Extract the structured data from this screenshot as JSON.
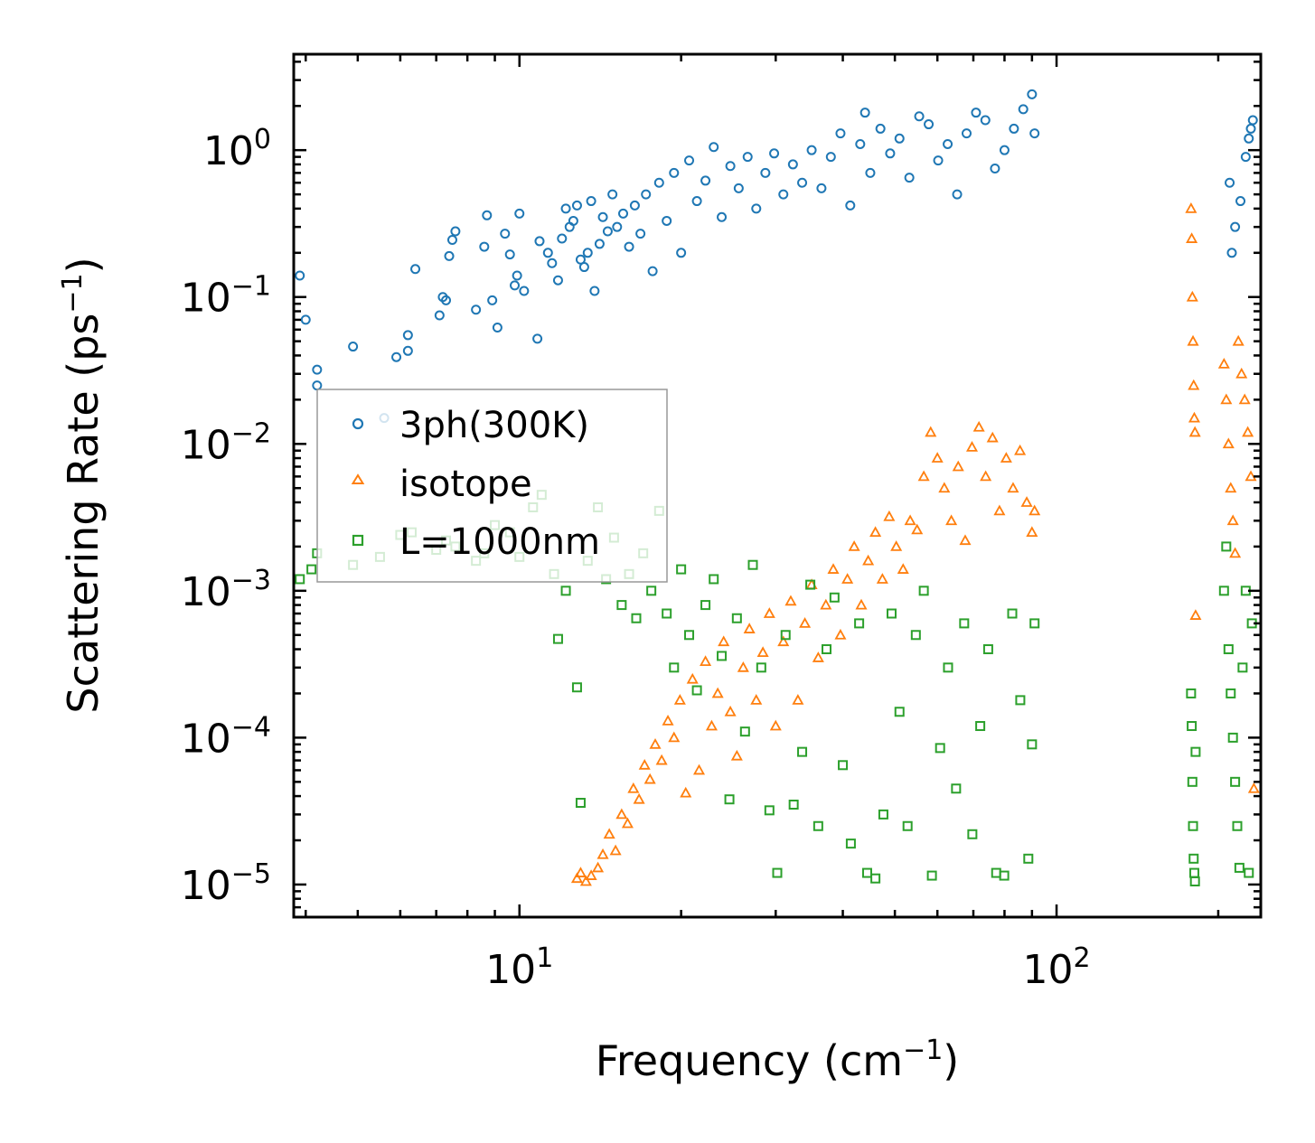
{
  "chart_data": {
    "type": "scatter",
    "title": "",
    "xscale": "log",
    "yscale": "log",
    "xlim": [
      3.8,
      240
    ],
    "ylim": [
      6e-06,
      4.5
    ],
    "xlabel": {
      "main": "Frequency (cm",
      "sup": "−1",
      "end": ")"
    },
    "ylabel": {
      "main": "Scattering Rate (ps",
      "sup": "−1",
      "end": ")"
    },
    "xticks": [
      {
        "value": 10,
        "base": "10",
        "exp": "1"
      },
      {
        "value": 100,
        "base": "10",
        "exp": "2"
      }
    ],
    "yticks": [
      {
        "value": 1,
        "base": "10",
        "exp": "0"
      },
      {
        "value": 0.1,
        "base": "10",
        "exp": "−1"
      },
      {
        "value": 0.01,
        "base": "10",
        "exp": "−2"
      },
      {
        "value": 0.001,
        "base": "10",
        "exp": "−3"
      },
      {
        "value": 0.0001,
        "base": "10",
        "exp": "−4"
      },
      {
        "value": 1e-05,
        "base": "10",
        "exp": "−5"
      }
    ],
    "legend_position": "center-left",
    "series": [
      {
        "name": "3ph(300K)",
        "marker": "circle",
        "color": "#1f77b4",
        "points": [
          [
            3.9,
            0.14
          ],
          [
            4.0,
            0.07
          ],
          [
            4.2,
            0.032
          ],
          [
            4.2,
            0.025
          ],
          [
            4.9,
            0.046
          ],
          [
            5.6,
            0.015
          ],
          [
            5.9,
            0.039
          ],
          [
            6.2,
            0.043
          ],
          [
            6.2,
            0.055
          ],
          [
            6.4,
            0.155
          ],
          [
            7.1,
            0.075
          ],
          [
            7.2,
            0.1
          ],
          [
            7.3,
            0.095
          ],
          [
            7.4,
            0.19
          ],
          [
            7.5,
            0.245
          ],
          [
            7.6,
            0.28
          ],
          [
            8.3,
            0.082
          ],
          [
            8.6,
            0.22
          ],
          [
            8.7,
            0.36
          ],
          [
            8.9,
            0.095
          ],
          [
            9.1,
            0.062
          ],
          [
            9.4,
            0.27
          ],
          [
            9.6,
            0.195
          ],
          [
            9.8,
            0.12
          ],
          [
            9.9,
            0.14
          ],
          [
            10.0,
            0.37
          ],
          [
            10.2,
            0.11
          ],
          [
            10.8,
            0.052
          ],
          [
            10.9,
            0.24
          ],
          [
            11.3,
            0.2
          ],
          [
            11.5,
            0.17
          ],
          [
            11.8,
            0.13
          ],
          [
            12.0,
            0.25
          ],
          [
            12.2,
            0.4
          ],
          [
            12.4,
            0.3
          ],
          [
            12.6,
            0.33
          ],
          [
            12.8,
            0.42
          ],
          [
            13.0,
            0.18
          ],
          [
            13.2,
            0.16
          ],
          [
            13.4,
            0.2
          ],
          [
            13.6,
            0.45
          ],
          [
            13.8,
            0.11
          ],
          [
            14.1,
            0.23
          ],
          [
            14.3,
            0.35
          ],
          [
            14.6,
            0.28
          ],
          [
            14.9,
            0.5
          ],
          [
            15.2,
            0.3
          ],
          [
            15.6,
            0.37
          ],
          [
            16.0,
            0.22
          ],
          [
            16.4,
            0.42
          ],
          [
            16.8,
            0.27
          ],
          [
            17.2,
            0.5
          ],
          [
            17.7,
            0.15
          ],
          [
            18.2,
            0.6
          ],
          [
            18.8,
            0.33
          ],
          [
            19.4,
            0.7
          ],
          [
            20.0,
            0.2
          ],
          [
            20.7,
            0.85
          ],
          [
            21.4,
            0.45
          ],
          [
            22.2,
            0.62
          ],
          [
            23.0,
            1.05
          ],
          [
            23.8,
            0.35
          ],
          [
            24.7,
            0.78
          ],
          [
            25.6,
            0.55
          ],
          [
            26.6,
            0.9
          ],
          [
            27.6,
            0.4
          ],
          [
            28.7,
            0.7
          ],
          [
            29.8,
            0.95
          ],
          [
            31.0,
            0.5
          ],
          [
            32.3,
            0.8
          ],
          [
            33.6,
            0.6
          ],
          [
            35.0,
            1.0
          ],
          [
            36.5,
            0.55
          ],
          [
            38.0,
            0.9
          ],
          [
            39.6,
            1.3
          ],
          [
            41.3,
            0.42
          ],
          [
            43.1,
            1.1
          ],
          [
            44.0,
            1.8
          ],
          [
            45.0,
            0.7
          ],
          [
            47.0,
            1.4
          ],
          [
            49.0,
            0.95
          ],
          [
            51.0,
            1.2
          ],
          [
            53.2,
            0.65
          ],
          [
            55.5,
            1.7
          ],
          [
            57.8,
            1.5
          ],
          [
            60.2,
            0.85
          ],
          [
            62.7,
            1.1
          ],
          [
            65.3,
            0.5
          ],
          [
            68.0,
            1.3
          ],
          [
            70.8,
            1.8
          ],
          [
            73.7,
            1.6
          ],
          [
            76.8,
            0.75
          ],
          [
            80.0,
            1.0
          ],
          [
            83.3,
            1.4
          ],
          [
            86.7,
            1.9
          ],
          [
            90.0,
            2.4
          ],
          [
            91.0,
            1.3
          ],
          [
            210.0,
            0.6
          ],
          [
            212.0,
            0.2
          ],
          [
            215.0,
            0.3
          ],
          [
            220.0,
            0.45
          ],
          [
            225.0,
            0.9
          ],
          [
            228.0,
            1.2
          ],
          [
            230.0,
            1.4
          ],
          [
            232.0,
            1.6
          ]
        ]
      },
      {
        "name": "isotope",
        "marker": "triangle",
        "color": "#ff7f0e",
        "points": [
          [
            12.8,
            1.1e-05
          ],
          [
            13.0,
            1.2e-05
          ],
          [
            13.3,
            1.05e-05
          ],
          [
            13.6,
            1.15e-05
          ],
          [
            14.0,
            1.3e-05
          ],
          [
            14.3,
            1.6e-05
          ],
          [
            14.7,
            2.2e-05
          ],
          [
            15.1,
            1.7e-05
          ],
          [
            15.5,
            3e-05
          ],
          [
            15.9,
            2.6e-05
          ],
          [
            16.3,
            4.5e-05
          ],
          [
            16.7,
            3.8e-05
          ],
          [
            17.1,
            6.5e-05
          ],
          [
            17.5,
            5.2e-05
          ],
          [
            17.9,
            9e-05
          ],
          [
            18.4,
            7e-05
          ],
          [
            18.9,
            0.00013
          ],
          [
            19.4,
            0.0001
          ],
          [
            19.9,
            0.00018
          ],
          [
            20.4,
            4.2e-05
          ],
          [
            21.0,
            0.00025
          ],
          [
            21.6,
            6e-05
          ],
          [
            22.2,
            0.00033
          ],
          [
            22.8,
            0.00012
          ],
          [
            23.4,
            0.0002
          ],
          [
            24.0,
            0.00045
          ],
          [
            24.7,
            0.00015
          ],
          [
            25.4,
            7.5e-05
          ],
          [
            26.1,
            0.0003
          ],
          [
            26.8,
            0.00055
          ],
          [
            27.6,
            0.00018
          ],
          [
            28.4,
            0.00038
          ],
          [
            29.2,
            0.0007
          ],
          [
            30.0,
            0.00012
          ],
          [
            31.0,
            0.00045
          ],
          [
            32.0,
            0.00085
          ],
          [
            33.0,
            0.00018
          ],
          [
            34.0,
            0.0006
          ],
          [
            35.0,
            0.0011
          ],
          [
            36.0,
            0.00035
          ],
          [
            37.2,
            0.0008
          ],
          [
            38.4,
            0.0014
          ],
          [
            39.6,
            0.0005
          ],
          [
            40.8,
            0.0012
          ],
          [
            42.0,
            0.002
          ],
          [
            43.3,
            0.0008
          ],
          [
            44.6,
            0.0016
          ],
          [
            46.0,
            0.0025
          ],
          [
            47.4,
            0.0012
          ],
          [
            48.8,
            0.0032
          ],
          [
            50.3,
            0.002
          ],
          [
            51.8,
            0.0014
          ],
          [
            53.4,
            0.003
          ],
          [
            55.0,
            0.0026
          ],
          [
            56.6,
            0.006
          ],
          [
            58.3,
            0.012
          ],
          [
            60.0,
            0.008
          ],
          [
            61.8,
            0.005
          ],
          [
            63.7,
            0.003
          ],
          [
            65.6,
            0.007
          ],
          [
            67.6,
            0.0022
          ],
          [
            69.6,
            0.0095
          ],
          [
            71.7,
            0.013
          ],
          [
            73.8,
            0.006
          ],
          [
            76.0,
            0.011
          ],
          [
            78.3,
            0.0035
          ],
          [
            80.6,
            0.008
          ],
          [
            83.0,
            0.005
          ],
          [
            85.5,
            0.009
          ],
          [
            88.0,
            0.004
          ],
          [
            90.0,
            0.0025
          ],
          [
            91.0,
            0.0035
          ],
          [
            178.0,
            0.4
          ],
          [
            178.5,
            0.25
          ],
          [
            179.0,
            0.1
          ],
          [
            179.5,
            0.05
          ],
          [
            180.0,
            0.025
          ],
          [
            180.5,
            0.015
          ],
          [
            181.0,
            0.012
          ],
          [
            181.5,
            0.00068
          ],
          [
            205.0,
            0.035
          ],
          [
            207.0,
            0.02
          ],
          [
            209.0,
            0.01
          ],
          [
            211.0,
            0.005
          ],
          [
            213.0,
            0.003
          ],
          [
            215.0,
            0.0018
          ],
          [
            218.0,
            0.05
          ],
          [
            221.0,
            0.03
          ],
          [
            224.0,
            0.02
          ],
          [
            227.0,
            0.012
          ],
          [
            230.0,
            0.006
          ],
          [
            233.0,
            4.5e-05
          ]
        ]
      },
      {
        "name": "L=1000nm",
        "marker": "square",
        "color": "#2ca02c",
        "points": [
          [
            3.9,
            0.0012
          ],
          [
            4.1,
            0.0014
          ],
          [
            4.2,
            0.0018
          ],
          [
            4.9,
            0.0015
          ],
          [
            5.5,
            0.0017
          ],
          [
            6.0,
            0.0024
          ],
          [
            6.3,
            0.0025
          ],
          [
            7.0,
            0.0019
          ],
          [
            7.3,
            0.0022
          ],
          [
            7.6,
            0.002
          ],
          [
            8.3,
            0.0016
          ],
          [
            8.6,
            0.0018
          ],
          [
            9.0,
            0.0028
          ],
          [
            9.6,
            0.0025
          ],
          [
            10.0,
            0.0017
          ],
          [
            10.6,
            0.0037
          ],
          [
            11.0,
            0.0045
          ],
          [
            11.6,
            0.0013
          ],
          [
            11.8,
            0.00047
          ],
          [
            12.2,
            0.001
          ],
          [
            12.8,
            0.00022
          ],
          [
            13.0,
            3.6e-05
          ],
          [
            13.4,
            0.0016
          ],
          [
            14.0,
            0.0037
          ],
          [
            14.5,
            0.0012
          ],
          [
            15.0,
            0.0023
          ],
          [
            15.5,
            0.0008
          ],
          [
            16.0,
            0.0013
          ],
          [
            16.5,
            0.00065
          ],
          [
            17.0,
            0.0018
          ],
          [
            17.6,
            0.001
          ],
          [
            18.2,
            0.0035
          ],
          [
            18.8,
            0.0007
          ],
          [
            19.4,
            0.0003
          ],
          [
            20.0,
            0.0014
          ],
          [
            20.7,
            0.0005
          ],
          [
            21.4,
            0.00021
          ],
          [
            22.2,
            0.0008
          ],
          [
            23.0,
            0.0012
          ],
          [
            23.8,
            0.00036
          ],
          [
            24.6,
            3.8e-05
          ],
          [
            25.4,
            0.00065
          ],
          [
            26.3,
            0.00011
          ],
          [
            27.2,
            0.0015
          ],
          [
            28.2,
            0.0003
          ],
          [
            29.2,
            3.2e-05
          ],
          [
            30.2,
            1.2e-05
          ],
          [
            31.3,
            0.0005
          ],
          [
            32.4,
            3.5e-05
          ],
          [
            33.6,
            8e-05
          ],
          [
            34.8,
            0.0011
          ],
          [
            36.0,
            2.5e-05
          ],
          [
            37.3,
            0.0004
          ],
          [
            38.6,
            0.0009
          ],
          [
            40.0,
            6.5e-05
          ],
          [
            41.4,
            1.9e-05
          ],
          [
            42.9,
            0.0006
          ],
          [
            44.4,
            1.2e-05
          ],
          [
            46.0,
            1.1e-05
          ],
          [
            47.6,
            3e-05
          ],
          [
            49.3,
            0.0007
          ],
          [
            51.0,
            0.00015
          ],
          [
            52.8,
            2.5e-05
          ],
          [
            54.7,
            0.0005
          ],
          [
            56.6,
            0.001
          ],
          [
            58.6,
            1.15e-05
          ],
          [
            60.7,
            8.5e-05
          ],
          [
            62.8,
            0.0003
          ],
          [
            65.0,
            4.5e-05
          ],
          [
            67.3,
            0.0006
          ],
          [
            69.7,
            2.2e-05
          ],
          [
            72.1,
            0.00012
          ],
          [
            74.6,
            0.0004
          ],
          [
            77.2,
            1.2e-05
          ],
          [
            79.9,
            1.15e-05
          ],
          [
            82.7,
            0.0007
          ],
          [
            85.6,
            0.00018
          ],
          [
            88.6,
            1.5e-05
          ],
          [
            90.0,
            9e-05
          ],
          [
            91.0,
            0.0006
          ],
          [
            178.0,
            0.0002
          ],
          [
            178.5,
            0.00012
          ],
          [
            179.0,
            5e-05
          ],
          [
            179.5,
            2.5e-05
          ],
          [
            180.0,
            1.5e-05
          ],
          [
            180.5,
            1.2e-05
          ],
          [
            181.0,
            1.05e-05
          ],
          [
            181.5,
            8e-05
          ],
          [
            205.0,
            0.001
          ],
          [
            207.0,
            0.002
          ],
          [
            209.0,
            0.0004
          ],
          [
            211.0,
            0.0002
          ],
          [
            213.0,
            0.0001
          ],
          [
            215.0,
            5e-05
          ],
          [
            217.0,
            2.5e-05
          ],
          [
            219.0,
            1.3e-05
          ],
          [
            222.0,
            0.0003
          ],
          [
            225.0,
            0.001
          ],
          [
            228.0,
            1.2e-05
          ],
          [
            231.0,
            0.0006
          ]
        ]
      }
    ]
  }
}
